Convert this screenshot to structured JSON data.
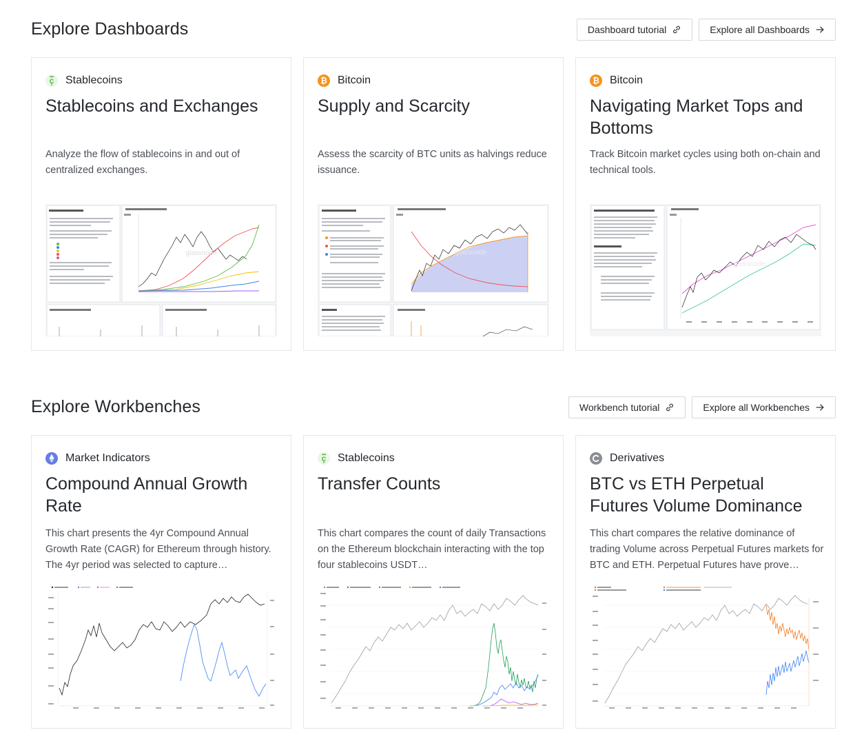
{
  "dashboards": {
    "title": "Explore Dashboards",
    "tutorial_label": "Dashboard tutorial",
    "explore_all_label": "Explore all Dashboards",
    "cards": [
      {
        "category": "Stablecoins",
        "category_icon": "stablecoin-icon",
        "title": "Stablecoins and Exchanges",
        "description": "Analyze the flow of stablecoins in and out of centralized exchanges.",
        "thumbnail": "stablecoins-exchanges-dashboard-preview"
      },
      {
        "category": "Bitcoin",
        "category_icon": "bitcoin-icon",
        "title": "Supply and Scarcity",
        "description": "Assess the scarcity of BTC units as halvings reduce issuance.",
        "thumbnail": "supply-scarcity-dashboard-preview"
      },
      {
        "category": "Bitcoin",
        "category_icon": "bitcoin-icon",
        "title": "Navigating Market Tops and Bottoms",
        "description": "Track Bitcoin market cycles using both on-chain and technical tools.",
        "thumbnail": "market-tops-bottoms-dashboard-preview"
      }
    ]
  },
  "workbenches": {
    "title": "Explore Workbenches",
    "tutorial_label": "Workbench tutorial",
    "explore_all_label": "Explore all Workbenches",
    "cards": [
      {
        "category": "Market Indicators",
        "category_icon": "ethereum-icon",
        "title": "Compound Annual Growth Rate",
        "description": "This chart presents the 4yr Compound Annual Growth Rate (CAGR) for Ethereum through history. The 4yr period was selected to capture…",
        "thumbnail": "cagr-workbench-preview"
      },
      {
        "category": "Stablecoins",
        "category_icon": "stablecoin-icon",
        "title": "Transfer Counts",
        "description": "This chart compares the count of daily Transactions on the Ethereum blockchain interacting with the top four stablecoins USDT…",
        "thumbnail": "transfer-counts-workbench-preview"
      },
      {
        "category": "Derivatives",
        "category_icon": "derivatives-icon",
        "title": "BTC vs ETH Perpetual Futures Volume Dominance",
        "description": "This chart compares the relative dominance of trading Volume across Perpetual Futures markets for BTC and ETH. Perpetual Futures have prove…",
        "thumbnail": "perpetual-dominance-workbench-preview"
      }
    ]
  },
  "colors": {
    "bitcoin": "#f7931a",
    "ethereum": "#627eea",
    "stablecoin": "#5dbb46",
    "derivatives": "#8a8d92",
    "border": "#e4e6e9"
  }
}
